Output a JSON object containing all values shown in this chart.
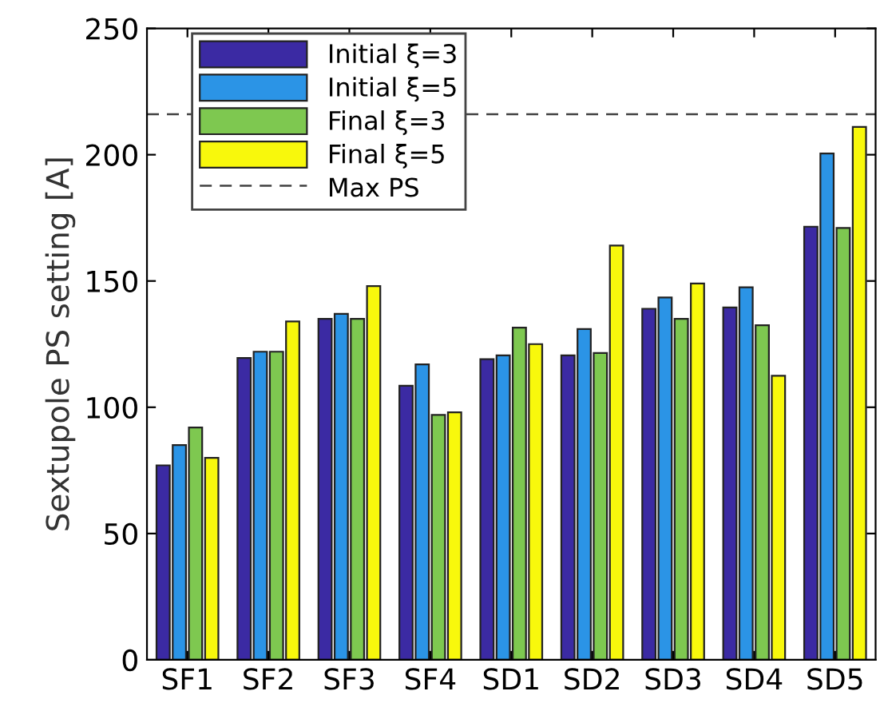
{
  "chart_data": {
    "type": "bar",
    "ylabel": "Sextupole PS setting [A]",
    "categories": [
      "SF1",
      "SF2",
      "SF3",
      "SF4",
      "SD1",
      "SD2",
      "SD3",
      "SD4",
      "SD5"
    ],
    "series": [
      {
        "name": "Initial ξ=3",
        "color": "#3b2aa3",
        "values": [
          77,
          119.5,
          135,
          108.5,
          119,
          120.5,
          139,
          139.5,
          171.5
        ]
      },
      {
        "name": "Initial ξ=5",
        "color": "#2b94e6",
        "values": [
          85,
          122,
          137,
          117,
          120.5,
          131,
          143.5,
          147.5,
          200.5
        ]
      },
      {
        "name": "Final ξ=3",
        "color": "#7ec850",
        "values": [
          92,
          122,
          135,
          97,
          131.5,
          121.5,
          135,
          132.5,
          171
        ]
      },
      {
        "name": "Final ξ=5",
        "color": "#f8f80c",
        "values": [
          80,
          134,
          148,
          98,
          125,
          164,
          149,
          112.5,
          211
        ]
      }
    ],
    "ref_lines": [
      {
        "axis": "y",
        "value": 216,
        "label": "Max PS",
        "color": "#404040",
        "line_style": "dashed"
      }
    ],
    "ylim": [
      0,
      250
    ],
    "yticks": [
      0,
      50,
      100,
      150,
      200,
      250
    ],
    "legend": "top left",
    "grid": false
  }
}
